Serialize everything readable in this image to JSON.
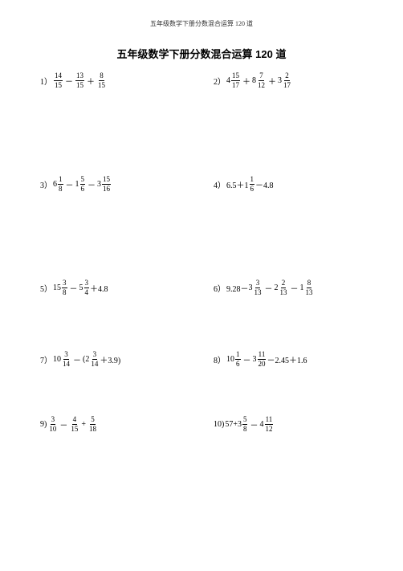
{
  "header": "五年级数学下册分数混合运算 120 道",
  "title": "五年级数学下册分数混合运算 120 道",
  "problems": {
    "p1": {
      "num": "1）"
    },
    "p2": {
      "num": "2）"
    },
    "p3": {
      "num": "3）"
    },
    "p4": {
      "num": "4）",
      "expr_tail": "－4.8"
    },
    "p5": {
      "num": "5）",
      "expr_tail": "＋4.8"
    },
    "p6": {
      "num": "6）",
      "expr_head": "9.28－"
    },
    "p7": {
      "num": "7）",
      "expr_tail": "＋3.9)"
    },
    "p8": {
      "num": "8）",
      "expr_tail": "－2.45＋1.6"
    },
    "p9": {
      "num": "9)"
    },
    "p10": {
      "num": "10)",
      "expr_head": " 57+"
    }
  },
  "fractions": {
    "f1a": {
      "n": "14",
      "d": "15"
    },
    "f1b": {
      "n": "13",
      "d": "15"
    },
    "f1c": {
      "n": "8",
      "d": "15"
    },
    "f2a": {
      "w": "4",
      "n": "15",
      "d": "17"
    },
    "f2b": {
      "w": "8",
      "n": "7",
      "d": "12"
    },
    "f2c": {
      "w": "3",
      "n": "2",
      "d": "17"
    },
    "f3a": {
      "w": "6",
      "n": "1",
      "d": "8"
    },
    "f3b": {
      "w": "1",
      "n": "5",
      "d": "6"
    },
    "f3c": {
      "w": "3",
      "n": "15",
      "d": "16"
    },
    "f4a": {
      "w": "6.5＋1",
      "n": "1",
      "d": "6"
    },
    "f5a": {
      "w": "15",
      "n": "3",
      "d": "8"
    },
    "f5b": {
      "w": "5",
      "n": "3",
      "d": "4"
    },
    "f6a": {
      "w": "3",
      "n": "3",
      "d": "13"
    },
    "f6b": {
      "w": "2",
      "n": "2",
      "d": "13"
    },
    "f6c": {
      "w": "1",
      "n": "8",
      "d": "13"
    },
    "f7a": {
      "w": "10",
      "n": "3",
      "d": "14"
    },
    "f7b": {
      "w": "(2",
      "n": "3",
      "d": "14"
    },
    "f8a": {
      "w": "10",
      "n": "1",
      "d": "6"
    },
    "f8b": {
      "w": "3",
      "n": "11",
      "d": "20"
    },
    "f9a": {
      "n": "3",
      "d": "10"
    },
    "f9b": {
      "n": "4",
      "d": "15"
    },
    "f9c": {
      "n": "5",
      "d": "18"
    },
    "f10a": {
      "w": "3",
      "n": "5",
      "d": "8"
    },
    "f10b": {
      "w": "4",
      "n": "11",
      "d": "12"
    }
  },
  "ops": {
    "minus": "－",
    "plus": "＋",
    "minus2": "－",
    "plus_ascii": "+",
    "minus_ascii": "－"
  }
}
